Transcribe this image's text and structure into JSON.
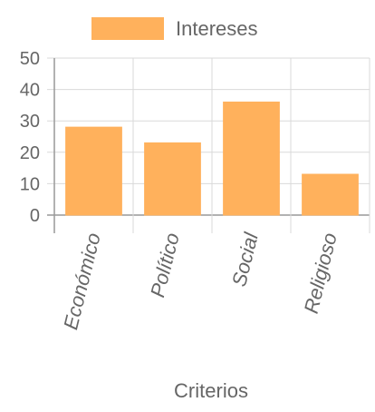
{
  "chart_data": {
    "type": "bar",
    "categories": [
      "Económico",
      "Político",
      "Social",
      "Religioso"
    ],
    "series": [
      {
        "name": "Intereses",
        "values": [
          28,
          23,
          36,
          13
        ]
      }
    ],
    "xlabel": "Criterios",
    "ylabel": "",
    "ylim": [
      0,
      50
    ],
    "yticks": [
      0,
      10,
      20,
      30,
      40,
      50
    ],
    "grid": true,
    "legend": "top",
    "colors": {
      "bar_fill": "#FFB15C",
      "bar_stroke": "#FFB15C",
      "grid": "#D9D9D9",
      "axis": "#999999",
      "text": "#666666"
    }
  }
}
